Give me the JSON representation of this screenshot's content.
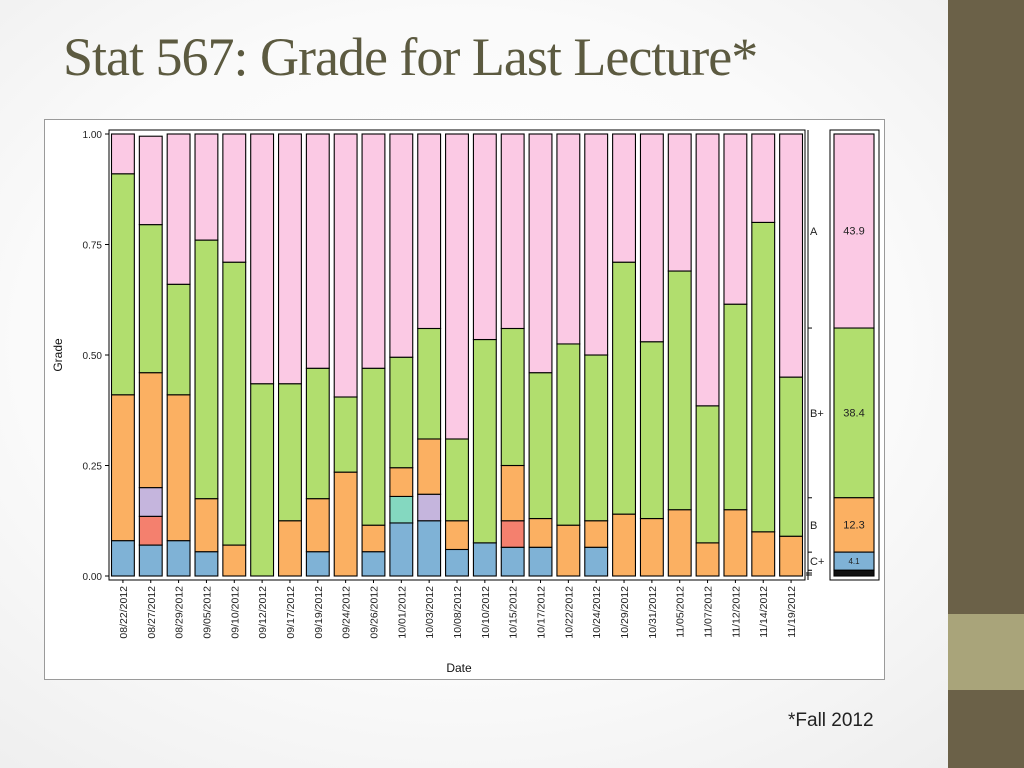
{
  "slide": {
    "title": "Stat 567: Grade for Last Lecture*",
    "footnote": "*Fall 2012"
  },
  "colors": {
    "accent_dark": "#6b6148",
    "accent_light": "#a9a47a",
    "title_color": "#5c5a40"
  },
  "chart_data": {
    "type": "bar",
    "stacked": "proportion",
    "xlabel": "Date",
    "ylabel": "Grade",
    "ylim": [
      0,
      1
    ],
    "y_ticks": [
      "0.00",
      "0.25",
      "0.50",
      "0.75",
      "1.00"
    ],
    "grid": false,
    "categories": [
      "08/22/2012",
      "08/27/2012",
      "08/29/2012",
      "09/05/2012",
      "09/10/2012",
      "09/12/2012",
      "09/17/2012",
      "09/19/2012",
      "09/24/2012",
      "09/26/2012",
      "10/01/2012",
      "10/03/2012",
      "10/08/2012",
      "10/10/2012",
      "10/15/2012",
      "10/17/2012",
      "10/22/2012",
      "10/24/2012",
      "10/29/2012",
      "10/31/2012",
      "11/05/2012",
      "11/07/2012",
      "11/12/2012",
      "11/14/2012",
      "11/19/2012"
    ],
    "series": [
      {
        "color": "#7fb2d6",
        "values": [
          0.08,
          0.07,
          0.08,
          0.055,
          0,
          0,
          0,
          0.055,
          0,
          0.055,
          0.12,
          0.125,
          0.06,
          0.075,
          0.065,
          0.065,
          0,
          0.065,
          0,
          0,
          0,
          0,
          0,
          0,
          0
        ]
      },
      {
        "color": "#f4806e",
        "values": [
          0,
          0.065,
          0,
          0,
          0,
          0,
          0,
          0,
          0,
          0,
          0,
          0,
          0,
          0,
          0.06,
          0,
          0,
          0,
          0,
          0,
          0,
          0,
          0,
          0,
          0
        ]
      },
      {
        "color": "#c5b5dd",
        "values": [
          0,
          0.065,
          0,
          0,
          0,
          0,
          0,
          0,
          0,
          0,
          0,
          0.06,
          0,
          0,
          0,
          0,
          0,
          0,
          0,
          0,
          0,
          0,
          0,
          0,
          0
        ]
      },
      {
        "color": "#84d8c0",
        "values": [
          0,
          0,
          0,
          0,
          0,
          0,
          0,
          0,
          0,
          0,
          0.06,
          0,
          0,
          0,
          0,
          0,
          0,
          0,
          0,
          0,
          0,
          0,
          0,
          0,
          0
        ]
      },
      {
        "color": "#fbb062",
        "values": [
          0.33,
          0.26,
          0.33,
          0.12,
          0.07,
          0,
          0.125,
          0.12,
          0.235,
          0.06,
          0.065,
          0.125,
          0.065,
          0,
          0.125,
          0.065,
          0.115,
          0.06,
          0.14,
          0.13,
          0.15,
          0.075,
          0.15,
          0.1,
          0.09
        ]
      },
      {
        "color": "#b1de6e",
        "values": [
          0.5,
          0.335,
          0.25,
          0.585,
          0.64,
          0.435,
          0.31,
          0.295,
          0.17,
          0.355,
          0.25,
          0.25,
          0.185,
          0.46,
          0.31,
          0.33,
          0.41,
          0.375,
          0.57,
          0.4,
          0.54,
          0.31,
          0.465,
          0.7,
          0.36
        ]
      },
      {
        "color": "#fbc9e4",
        "values": [
          0.09,
          0.2,
          0.34,
          0.24,
          0.29,
          0.565,
          0.565,
          0.53,
          0.595,
          0.53,
          0.505,
          0.44,
          0.69,
          0.465,
          0.44,
          0.54,
          0.475,
          0.5,
          0.29,
          0.47,
          0.31,
          0.615,
          0.385,
          0.2,
          0.55
        ]
      }
    ],
    "summary_bar": {
      "grades": [
        "A",
        "B+",
        "B",
        "C+",
        "lower"
      ],
      "colors": [
        "#fbc9e4",
        "#b1de6e",
        "#fbb062",
        "#7fb2d6",
        "#111111"
      ],
      "values": [
        43.9,
        38.4,
        12.3,
        4.1,
        1.3
      ],
      "labels": [
        "43.9",
        "38.4",
        "12.3",
        "4.1",
        ""
      ]
    },
    "grade_labels": [
      "A",
      "B+",
      "B",
      "C+"
    ]
  }
}
